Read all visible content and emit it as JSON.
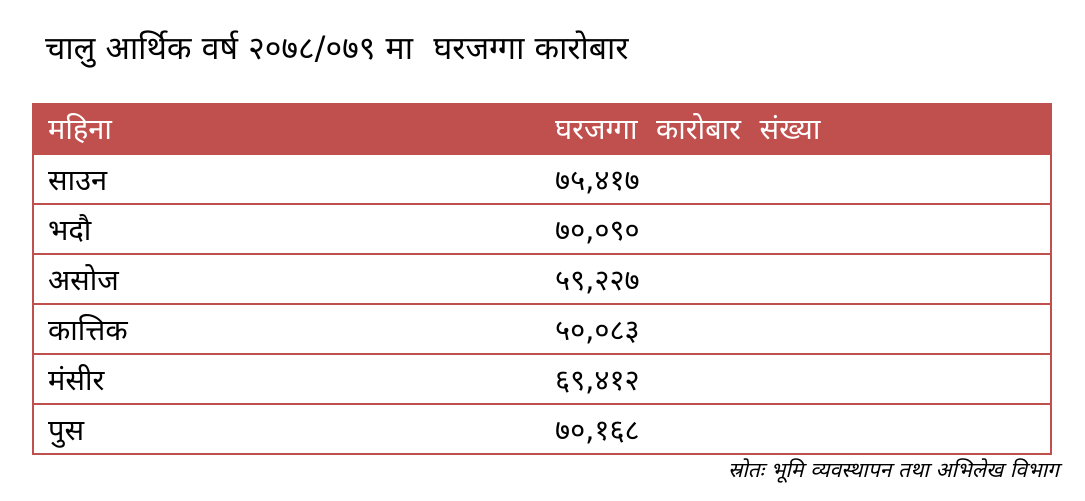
{
  "header": {
    "title": "चालु आर्थिक वर्ष २०७८/०७९ मा  घरजग्गा कारोबार"
  },
  "table": {
    "columns": [
      "महिना",
      "घरजग्गा  कारोबार  संख्या"
    ],
    "rows": [
      [
        "साउन",
        "७५,४१७"
      ],
      [
        "भदौ",
        "७०,०९०"
      ],
      [
        "असोज",
        "५९,२२७"
      ],
      [
        "कात्तिक",
        "५०,०८३"
      ],
      [
        "मंसीर",
        "६९,४१२"
      ],
      [
        "पुस",
        "७०,१६८"
      ]
    ]
  },
  "footer": {
    "source": "स्रोतः भूमि व्यवस्थापन तथा अभिलेख विभाग"
  }
}
